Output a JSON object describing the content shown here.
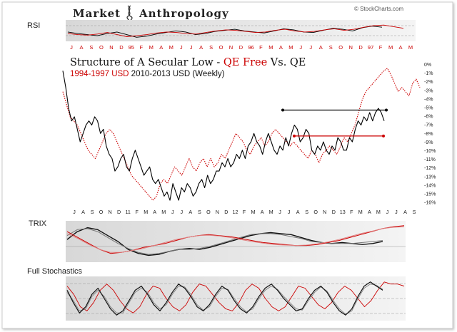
{
  "brand": {
    "name_first": "Market",
    "name_second": "Anthropology",
    "watermark": "© StockCharts.com"
  },
  "colors": {
    "series_a": "#000000",
    "series_b": "#cc0000",
    "panel_bg": "#e6e6e6",
    "grid": "#bbbbbb"
  },
  "chart_data": [
    {
      "type": "line",
      "panel": "rsi",
      "title": "RSI",
      "top_axis_labels": [
        "J",
        "A",
        "S",
        "O",
        "N",
        "D",
        "95",
        "F",
        "M",
        "A",
        "M",
        "J",
        "J",
        "A",
        "S",
        "O",
        "N",
        "D",
        "96",
        "F",
        "M",
        "A",
        "M",
        "J",
        "J",
        "A",
        "S",
        "O",
        "N",
        "D",
        "97",
        "F",
        "M",
        "A",
        "M"
      ],
      "series": [
        {
          "values": [
            55,
            52,
            50,
            48,
            52,
            55,
            50,
            45,
            47,
            51,
            54,
            57,
            55,
            50,
            52,
            56,
            58,
            60,
            57,
            55,
            53,
            57,
            61,
            59,
            55,
            54,
            58,
            62,
            60,
            57,
            63,
            66,
            64
          ]
        },
        {
          "values": [
            52,
            50,
            49,
            51,
            54,
            50,
            46,
            48,
            50,
            53,
            55,
            54,
            52,
            51,
            54,
            57,
            59,
            58,
            56,
            54,
            55,
            58,
            60,
            57,
            55,
            56,
            59,
            61,
            58,
            60,
            64,
            67,
            68,
            65,
            62
          ]
        }
      ]
    },
    {
      "type": "line",
      "panel": "main",
      "title": "Structure of A Secular Low - QE Free Vs. QE",
      "title_plain": "Structure of A Secular Low - ",
      "title_red": "QE Free",
      "title_mid": " Vs. QE",
      "subtitle_red": "1994-1997 USD",
      "subtitle_black": " 2010-2013 USD (Weekly)",
      "right_axis_labels": [
        "0%",
        "-1%",
        "-2%",
        "-3%",
        "-4%",
        "-5%",
        "-6%",
        "-7%",
        "-8%",
        "-9%",
        "-10%",
        "-11%",
        "-12%",
        "-13%",
        "-14%",
        "-15%",
        "-16%"
      ],
      "bottom_axis_labels": [
        "J",
        "A",
        "S",
        "O",
        "N",
        "D",
        "11",
        "F",
        "M",
        "A",
        "M",
        "J",
        "J",
        "A",
        "S",
        "O",
        "N",
        "D",
        "12",
        "F",
        "M",
        "A",
        "M",
        "J",
        "J",
        "A",
        "S",
        "O",
        "N",
        "D",
        "13",
        "F",
        "M",
        "A",
        "M",
        "J",
        "J",
        "A",
        "S"
      ],
      "ylim": [
        -16.5,
        0.3
      ],
      "series": [
        {
          "values": [
            -0.5,
            -2.5,
            -5,
            -6.5,
            -6,
            -7.5,
            -9,
            -8,
            -7,
            -6.5,
            -7,
            -6,
            -6.5,
            -8,
            -7.5,
            -9.5,
            -10.5,
            -11,
            -12.5,
            -12,
            -11,
            -10.5,
            -12,
            -12.5,
            -11,
            -10,
            -11,
            -12,
            -13,
            -12.5,
            -12,
            -13.5,
            -14,
            -13.5,
            -14.5,
            -15.5,
            -15,
            -16,
            -14,
            -15,
            -16,
            -14.5,
            -15,
            -14,
            -14.5,
            -15.5,
            -15,
            -14,
            -13.5,
            -14.5,
            -13,
            -14,
            -13.5,
            -12.5,
            -12.5,
            -11.5,
            -12,
            -11,
            -12,
            -11.5,
            -10.5,
            -11,
            -10,
            -11,
            -9.5,
            -9,
            -8,
            -9,
            -9.5,
            -10.5,
            -9,
            -8,
            -9,
            -10,
            -10.5,
            -9.5,
            -10,
            -8.5,
            -9.5,
            -8,
            -7,
            -7.5,
            -9,
            -8.5,
            -7.5,
            -8,
            -10,
            -10.5,
            -9.5,
            -10,
            -9,
            -10,
            -10.5,
            -9.5,
            -10,
            -8.5,
            -9,
            -10,
            -10,
            -8.5,
            -9,
            -7.5,
            -6.5,
            -7,
            -6,
            -6.5,
            -5.5,
            -6.5,
            -5.5,
            -5,
            -5.5,
            -6.5
          ]
        },
        {
          "values": [
            -3,
            -4.5,
            -6,
            -6.5,
            -7,
            -8,
            -9,
            -10,
            -10.5,
            -11,
            -10,
            -9,
            -8,
            -7.5,
            -8,
            -9,
            -10,
            -11,
            -12,
            -13,
            -13.5,
            -14,
            -14.5,
            -15,
            -15.5,
            -16,
            -15.5,
            -14,
            -13.5,
            -14,
            -13,
            -12,
            -12.5,
            -13,
            -12,
            -11,
            -12,
            -12.5,
            -11.5,
            -11,
            -12,
            -11,
            -12,
            -11.5,
            -10.5,
            -11,
            -10,
            -9,
            -8,
            -8.5,
            -9,
            -10,
            -10.5,
            -9.5,
            -9,
            -8.5,
            -9.5,
            -9,
            -8,
            -7.5,
            -8,
            -8.5,
            -9,
            -9.5,
            -9,
            -9.5,
            -10,
            -10.5,
            -11,
            -10,
            -10.5,
            -11.5,
            -10.5,
            -10,
            -9.5,
            -10,
            -10.5,
            -9.5,
            -8.5,
            -9,
            -8,
            -7,
            -5.5,
            -4,
            -3,
            -2.5,
            -2,
            -1.5,
            -1,
            -0.5,
            -0.2,
            -1,
            -2,
            -3,
            -2.5,
            -3,
            -3.5,
            -2,
            -1.5,
            -2.5
          ]
        }
      ],
      "annotations": [
        {
          "label": "black resistance",
          "y": -5.2
        },
        {
          "label": "red resistance",
          "y": -8.3
        }
      ]
    },
    {
      "type": "line",
      "panel": "trix",
      "title": "TRIX",
      "series": [
        {
          "values": [
            0.2,
            0.6,
            0.8,
            0.7,
            0.4,
            0.1,
            -0.3,
            -0.5,
            -0.6,
            -0.55,
            -0.4,
            -0.3,
            -0.25,
            -0.3,
            -0.2,
            -0.05,
            0.1,
            0.25,
            0.4,
            0.5,
            0.55,
            0.5,
            0.45,
            0.3,
            0.15,
            0.05,
            0.0,
            0.05,
            0.0,
            -0.05,
            0.0,
            0.1
          ]
        },
        {
          "values": [
            0.4,
            0.7,
            0.75,
            0.6,
            0.3,
            0.0,
            -0.25,
            -0.45,
            -0.55,
            -0.5,
            -0.4,
            -0.3,
            -0.3,
            -0.25,
            -0.15,
            -0.0,
            0.15,
            0.3,
            0.45,
            0.5,
            0.5,
            0.45,
            0.35,
            0.25,
            0.1,
            0.05,
            0.0,
            0.0,
            0.0,
            0.05,
            0.1,
            0.15
          ]
        },
        {
          "values": [
            0.6,
            0.3,
            0.0,
            -0.3,
            -0.5,
            -0.45,
            -0.35,
            -0.2,
            -0.1,
            0.0,
            0.15,
            0.3,
            0.4,
            0.45,
            0.4,
            0.35,
            0.25,
            0.15,
            0.05,
            0.0,
            -0.05,
            -0.1,
            -0.1,
            -0.05,
            0.05,
            0.15,
            0.3,
            0.45,
            0.6,
            0.75,
            0.85,
            0.9
          ]
        },
        {
          "values": [
            0.5,
            0.25,
            -0.05,
            -0.3,
            -0.45,
            -0.45,
            -0.35,
            -0.25,
            -0.1,
            0.05,
            0.2,
            0.3,
            0.4,
            0.42,
            0.38,
            0.3,
            0.2,
            0.1,
            0.02,
            -0.05,
            -0.08,
            -0.1,
            -0.08,
            -0.02,
            0.08,
            0.2,
            0.35,
            0.5,
            0.62,
            0.75,
            0.82,
            0.85
          ]
        }
      ]
    },
    {
      "type": "line",
      "panel": "stochastics",
      "title": "Full Stochastics",
      "series": [
        {
          "values": [
            70,
            40,
            15,
            30,
            60,
            75,
            50,
            25,
            10,
            20,
            45,
            70,
            80,
            60,
            35,
            20,
            40,
            65,
            85,
            75,
            55,
            30,
            20,
            35,
            60,
            80,
            70,
            45,
            25,
            15,
            30,
            55,
            75,
            85,
            70,
            50,
            35,
            20,
            25,
            50,
            70,
            80,
            65,
            40,
            20,
            10,
            25,
            55,
            80,
            90,
            80,
            70
          ]
        },
        {
          "values": [
            65,
            45,
            20,
            25,
            55,
            70,
            55,
            30,
            15,
            15,
            40,
            65,
            75,
            65,
            40,
            25,
            35,
            60,
            80,
            78,
            60,
            35,
            22,
            30,
            55,
            75,
            72,
            50,
            30,
            18,
            25,
            50,
            70,
            80,
            72,
            55,
            40,
            25,
            22,
            45,
            65,
            78,
            68,
            45,
            25,
            12,
            20,
            50,
            75,
            85,
            82,
            72
          ]
        },
        {
          "values": [
            80,
            60,
            30,
            20,
            40,
            70,
            85,
            70,
            45,
            25,
            15,
            30,
            60,
            80,
            75,
            50,
            30,
            20,
            35,
            65,
            85,
            80,
            60,
            40,
            25,
            20,
            40,
            70,
            85,
            75,
            50,
            30,
            20,
            30,
            55,
            80,
            75,
            55,
            35,
            25,
            40,
            65,
            80,
            70,
            50,
            30,
            45,
            70,
            90,
            85,
            85,
            80
          ]
        }
      ]
    }
  ]
}
